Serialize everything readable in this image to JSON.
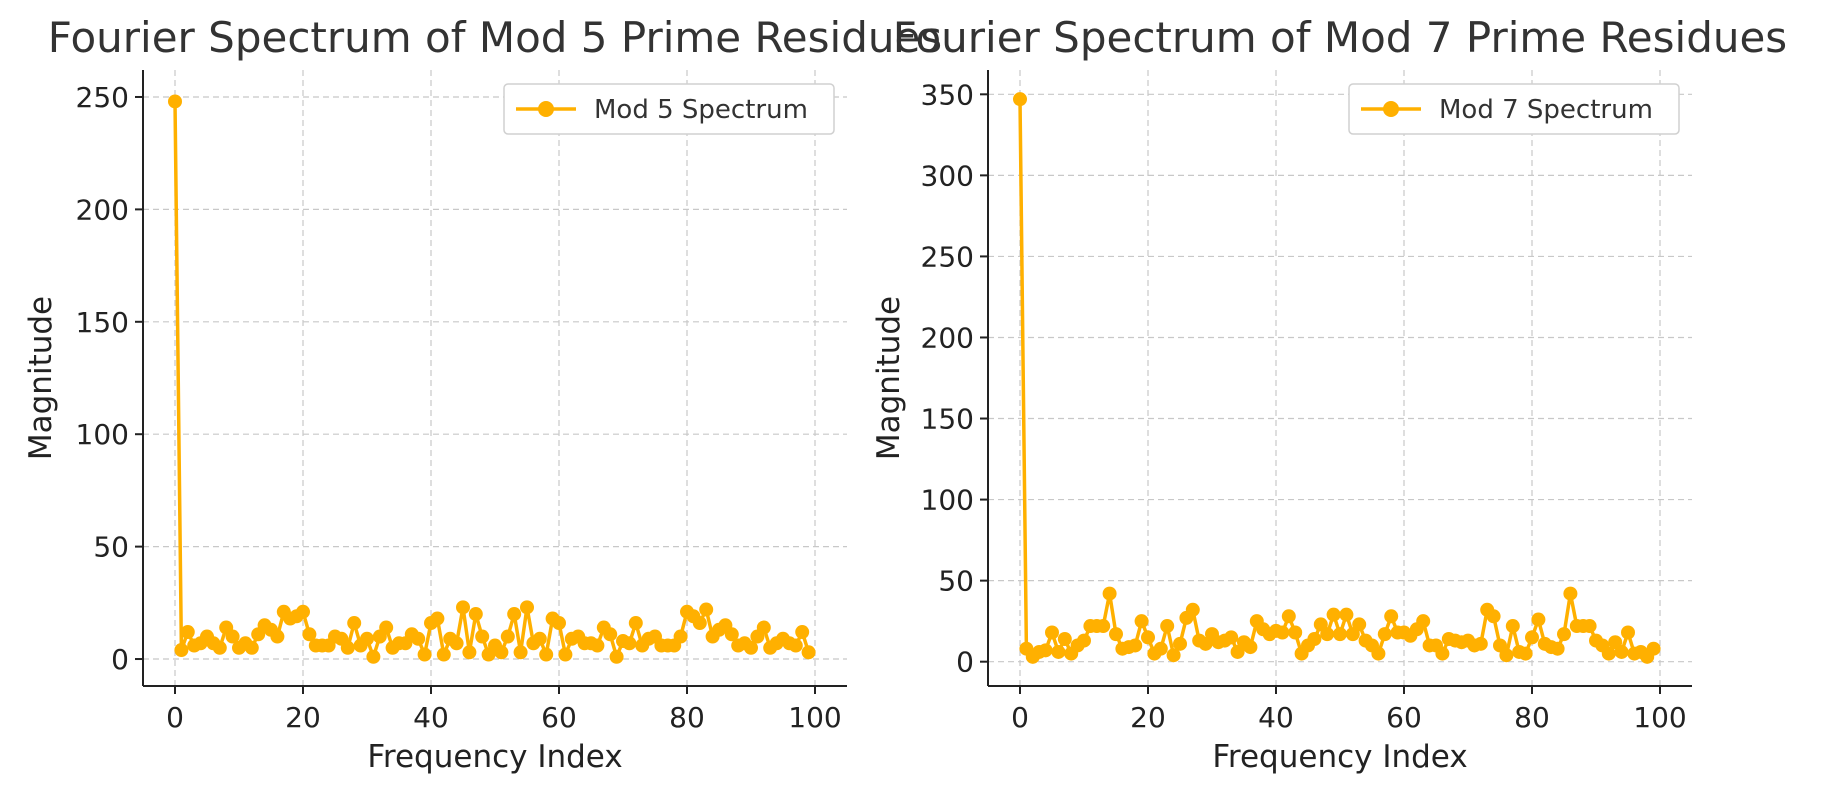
{
  "chart_data": [
    {
      "type": "line",
      "title": "Fourier Spectrum of Mod 5 Prime Residues",
      "xlabel": "Frequency Index",
      "ylabel": "Magnitude",
      "xlim": [
        -5,
        105
      ],
      "ylim": [
        -12,
        262
      ],
      "xticks": [
        0,
        20,
        40,
        60,
        80,
        100
      ],
      "yticks": [
        0,
        50,
        100,
        150,
        200,
        250
      ],
      "grid": true,
      "legend_position": "top-right",
      "color": "#FFB000",
      "series": [
        {
          "name": "Mod 5 Spectrum",
          "x": [
            0,
            1,
            2,
            3,
            4,
            5,
            6,
            7,
            8,
            9,
            10,
            11,
            12,
            13,
            14,
            15,
            16,
            17,
            18,
            19,
            20,
            21,
            22,
            23,
            24,
            25,
            26,
            27,
            28,
            29,
            30,
            31,
            32,
            33,
            34,
            35,
            36,
            37,
            38,
            39,
            40,
            41,
            42,
            43,
            44,
            45,
            46,
            47,
            48,
            49,
            50,
            51,
            52,
            53,
            54,
            55,
            56,
            57,
            58,
            59,
            60,
            61,
            62,
            63,
            64,
            65,
            66,
            67,
            68,
            69,
            70,
            71,
            72,
            73,
            74,
            75,
            76,
            77,
            78,
            79,
            80,
            81,
            82,
            83,
            84,
            85,
            86,
            87,
            88,
            89,
            90,
            91,
            92,
            93,
            94,
            95,
            96,
            97,
            98,
            99
          ],
          "values": [
            248,
            4,
            12,
            6,
            7,
            10,
            7,
            5,
            14,
            10,
            5,
            7,
            5,
            11,
            15,
            13,
            10,
            21,
            18,
            19,
            21,
            11,
            6,
            6,
            6,
            10,
            9,
            5,
            16,
            6,
            9,
            1,
            10,
            14,
            5,
            7,
            7,
            11,
            9,
            2,
            16,
            18,
            2,
            9,
            7,
            23,
            3,
            20,
            10,
            2,
            6,
            3,
            10,
            20,
            3,
            23,
            7,
            9,
            2,
            18,
            16,
            2,
            9,
            10,
            7,
            7,
            6,
            14,
            11,
            1,
            8,
            7,
            16,
            6,
            9,
            10,
            6,
            6,
            6,
            10,
            21,
            19,
            16,
            22,
            10,
            13,
            15,
            11,
            6,
            7,
            5,
            10,
            14,
            5,
            7,
            9,
            7,
            6,
            12,
            3
          ]
        }
      ]
    },
    {
      "type": "line",
      "title": "Fourier Spectrum of Mod 7 Prime Residues",
      "xlabel": "Frequency Index",
      "ylabel": "Magnitude",
      "xlim": [
        -5,
        105
      ],
      "ylim": [
        -15,
        365
      ],
      "xticks": [
        0,
        20,
        40,
        60,
        80,
        100
      ],
      "yticks": [
        0,
        50,
        100,
        150,
        200,
        250,
        300,
        350
      ],
      "grid": true,
      "legend_position": "top-right",
      "color": "#FFB000",
      "series": [
        {
          "name": "Mod 7 Spectrum",
          "x": [
            0,
            1,
            2,
            3,
            4,
            5,
            6,
            7,
            8,
            9,
            10,
            11,
            12,
            13,
            14,
            15,
            16,
            17,
            18,
            19,
            20,
            21,
            22,
            23,
            24,
            25,
            26,
            27,
            28,
            29,
            30,
            31,
            32,
            33,
            34,
            35,
            36,
            37,
            38,
            39,
            40,
            41,
            42,
            43,
            44,
            45,
            46,
            47,
            48,
            49,
            50,
            51,
            52,
            53,
            54,
            55,
            56,
            57,
            58,
            59,
            60,
            61,
            62,
            63,
            64,
            65,
            66,
            67,
            68,
            69,
            70,
            71,
            72,
            73,
            74,
            75,
            76,
            77,
            78,
            79,
            80,
            81,
            82,
            83,
            84,
            85,
            86,
            87,
            88,
            89,
            90,
            91,
            92,
            93,
            94,
            95,
            96,
            97,
            98,
            99
          ],
          "values": [
            347,
            8,
            3,
            6,
            7,
            18,
            6,
            14,
            5,
            10,
            13,
            22,
            22,
            22,
            42,
            17,
            8,
            9,
            10,
            25,
            15,
            5,
            8,
            22,
            4,
            11,
            27,
            32,
            13,
            11,
            17,
            12,
            13,
            15,
            6,
            12,
            9,
            25,
            20,
            17,
            19,
            18,
            28,
            18,
            5,
            10,
            14,
            23,
            17,
            29,
            17,
            29,
            17,
            23,
            13,
            10,
            5,
            17,
            28,
            18,
            18,
            16,
            20,
            25,
            10,
            10,
            5,
            14,
            13,
            12,
            13,
            10,
            11,
            32,
            28,
            10,
            4,
            22,
            6,
            5,
            15,
            26,
            11,
            9,
            8,
            17,
            42,
            22,
            22,
            22,
            13,
            10,
            5,
            12,
            6,
            18,
            5,
            6,
            3,
            8
          ]
        }
      ]
    }
  ]
}
